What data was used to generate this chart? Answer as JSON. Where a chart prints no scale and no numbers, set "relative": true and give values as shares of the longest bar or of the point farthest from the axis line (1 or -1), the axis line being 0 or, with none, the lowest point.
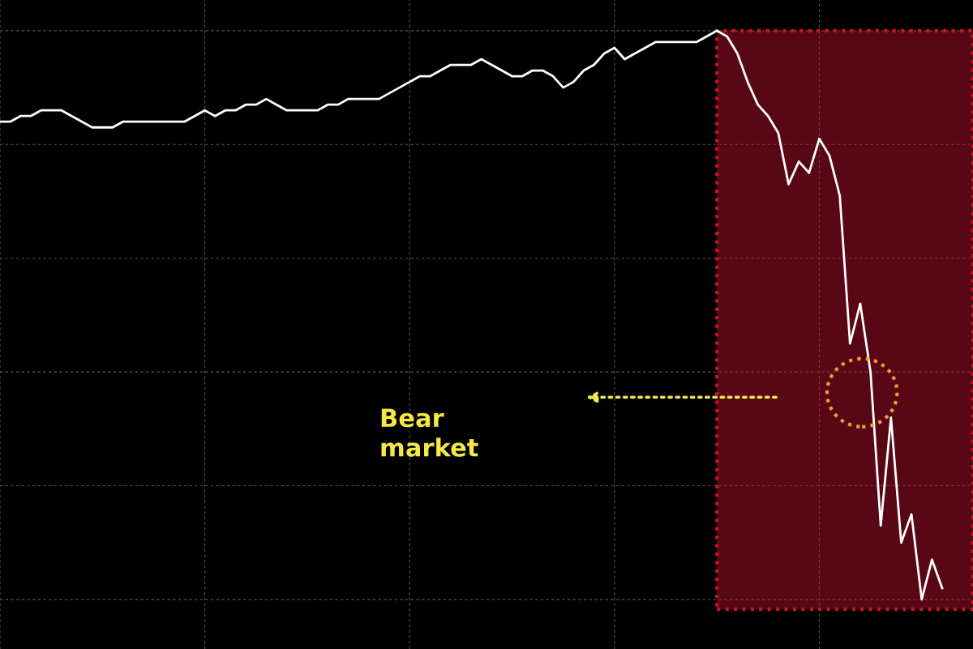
{
  "chart_data": {
    "type": "line",
    "relative": true,
    "categories": [
      null,
      null,
      null,
      null,
      null,
      null,
      null,
      null,
      null,
      null,
      null,
      null,
      null,
      null,
      null,
      null,
      null,
      null,
      null,
      null,
      null,
      null,
      null,
      null,
      null,
      null,
      null,
      null,
      null,
      null,
      null,
      null,
      null,
      null,
      null,
      null,
      null,
      null,
      null,
      null,
      null,
      null,
      null,
      null,
      null,
      null,
      null,
      null,
      null,
      null,
      null,
      null,
      null,
      null,
      null,
      null,
      null,
      null,
      null,
      null,
      null,
      null,
      null,
      null,
      null,
      null,
      null,
      null,
      null,
      null,
      null,
      null,
      null,
      null,
      null,
      null,
      null,
      null,
      null,
      null,
      null,
      null,
      null,
      null,
      null,
      null,
      null,
      null,
      null,
      null,
      null,
      null,
      null
    ],
    "series": [
      {
        "color": "#ffffff",
        "values": [
          0.84,
          0.84,
          0.85,
          0.85,
          0.86,
          0.86,
          0.86,
          0.85,
          0.84,
          0.83,
          0.83,
          0.83,
          0.84,
          0.84,
          0.84,
          0.84,
          0.84,
          0.84,
          0.84,
          0.85,
          0.86,
          0.85,
          0.86,
          0.86,
          0.87,
          0.87,
          0.88,
          0.87,
          0.86,
          0.86,
          0.86,
          0.86,
          0.87,
          0.87,
          0.88,
          0.88,
          0.88,
          0.88,
          0.89,
          0.9,
          0.91,
          0.92,
          0.92,
          0.93,
          0.94,
          0.94,
          0.94,
          0.95,
          0.94,
          0.93,
          0.92,
          0.92,
          0.93,
          0.93,
          0.92,
          0.9,
          0.91,
          0.93,
          0.94,
          0.96,
          0.97,
          0.95,
          0.96,
          0.97,
          0.98,
          0.98,
          0.98,
          0.98,
          0.98,
          0.99,
          1.0,
          0.99,
          0.96,
          0.91,
          0.87,
          0.85,
          0.82,
          0.73,
          0.77,
          0.75,
          0.81,
          0.78,
          0.71,
          0.45,
          0.52,
          0.4,
          0.13,
          0.32,
          0.1,
          0.15,
          0,
          0.07,
          0.02
        ]
      }
    ],
    "annotations": [
      "Bear market"
    ],
    "grid": true,
    "legend": false,
    "marker": "none",
    "line_style": "solid"
  }
}
